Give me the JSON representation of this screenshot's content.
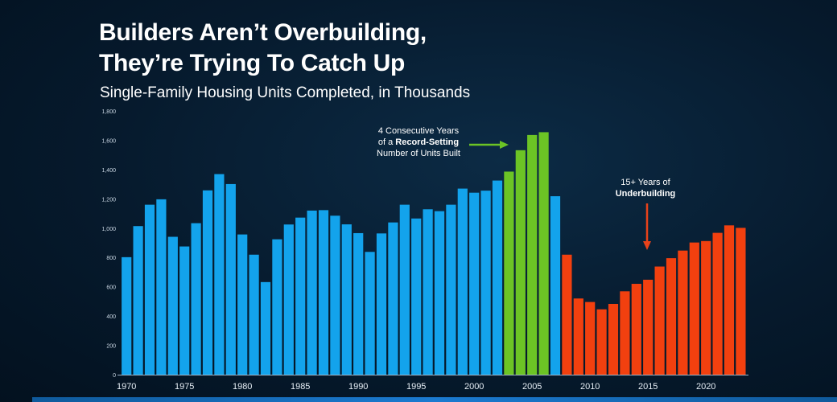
{
  "title_line1": "Builders Aren’t Overbuilding,",
  "title_line2": "They’re Trying To Catch Up",
  "subtitle": "Single-Family Housing Units Completed, in Thousands",
  "annotations": {
    "record": {
      "line1": "4 Consecutive Years",
      "line2_pre": "of a ",
      "line2_bold": "Record-Setting",
      "line3": "Number of Units Built"
    },
    "under": {
      "line1": "15+ Years of",
      "line2_bold": "Underbuilding"
    }
  },
  "colors": {
    "normal": "#13a3ec",
    "record": "#6cc425",
    "under": "#f2400f",
    "arrow_green": "#6cc425",
    "arrow_red": "#e8421a"
  },
  "chart_data": {
    "type": "bar",
    "title": "",
    "xlabel": "",
    "ylabel": "",
    "ylim": [
      0,
      1800
    ],
    "y_ticks": [
      "0",
      "200",
      "400",
      "600",
      "800",
      "1,000",
      "1,200",
      "1,400",
      "1,600",
      "1,800"
    ],
    "x_tick_labels": [
      "1970",
      "1975",
      "1980",
      "1985",
      "1990",
      "1995",
      "2000",
      "2005",
      "2010",
      "2015",
      "2020"
    ],
    "categories": [
      "1970",
      "1971",
      "1972",
      "1973",
      "1974",
      "1975",
      "1976",
      "1977",
      "1978",
      "1979",
      "1980",
      "1981",
      "1982",
      "1983",
      "1984",
      "1985",
      "1986",
      "1987",
      "1988",
      "1989",
      "1990",
      "1991",
      "1992",
      "1993",
      "1994",
      "1995",
      "1996",
      "1997",
      "1998",
      "1999",
      "2000",
      "2001",
      "2002",
      "2003",
      "2004",
      "2005",
      "2006",
      "2007",
      "2008",
      "2009",
      "2010",
      "2011",
      "2012",
      "2013",
      "2014",
      "2015",
      "2016",
      "2017",
      "2018",
      "2019",
      "2020",
      "2021",
      "2022",
      "2023"
    ],
    "values": [
      802,
      1014,
      1160,
      1197,
      941,
      875,
      1034,
      1258,
      1369,
      1301,
      957,
      819,
      632,
      924,
      1025,
      1072,
      1120,
      1123,
      1085,
      1026,
      966,
      838,
      964,
      1039,
      1160,
      1066,
      1129,
      1116,
      1160,
      1270,
      1242,
      1256,
      1325,
      1386,
      1532,
      1636,
      1655,
      1218,
      819,
      520,
      496,
      446,
      483,
      569,
      620,
      648,
      738,
      795,
      847,
      902,
      912,
      968,
      1019,
      1002
    ],
    "groups": [
      "normal",
      "normal",
      "normal",
      "normal",
      "normal",
      "normal",
      "normal",
      "normal",
      "normal",
      "normal",
      "normal",
      "normal",
      "normal",
      "normal",
      "normal",
      "normal",
      "normal",
      "normal",
      "normal",
      "normal",
      "normal",
      "normal",
      "normal",
      "normal",
      "normal",
      "normal",
      "normal",
      "normal",
      "normal",
      "normal",
      "normal",
      "normal",
      "normal",
      "record",
      "record",
      "record",
      "record",
      "normal",
      "under",
      "under",
      "under",
      "under",
      "under",
      "under",
      "under",
      "under",
      "under",
      "under",
      "under",
      "under",
      "under",
      "under",
      "under",
      "under"
    ],
    "grid": false,
    "legend": "none"
  }
}
